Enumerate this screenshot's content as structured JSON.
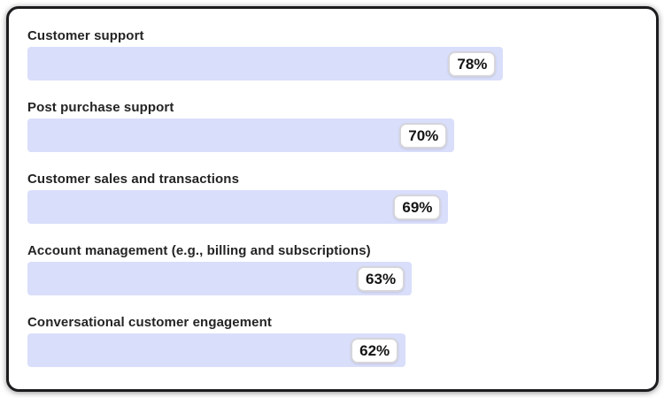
{
  "chart_data": {
    "type": "bar",
    "orientation": "horizontal",
    "title": "",
    "xlabel": "",
    "ylabel": "",
    "xlim": [
      0,
      100
    ],
    "grid": false,
    "legend": "none",
    "categories": [
      "Customer support",
      "Post purchase support",
      "Customer sales and transactions",
      "Account management (e.g., billing and subscriptions)",
      "Conversational customer engagement"
    ],
    "values": [
      78,
      70,
      69,
      63,
      62
    ],
    "value_labels": [
      "78%",
      "70%",
      "69%",
      "63%",
      "62%"
    ],
    "colors": {
      "bar_fill": "#d9defb",
      "badge_bg": "#ffffff",
      "badge_border": "#d5d5db",
      "badge_text": "#141414",
      "label_text": "#242424",
      "frame_border": "#1c1c1e",
      "card_bg": "#ffffff"
    }
  }
}
